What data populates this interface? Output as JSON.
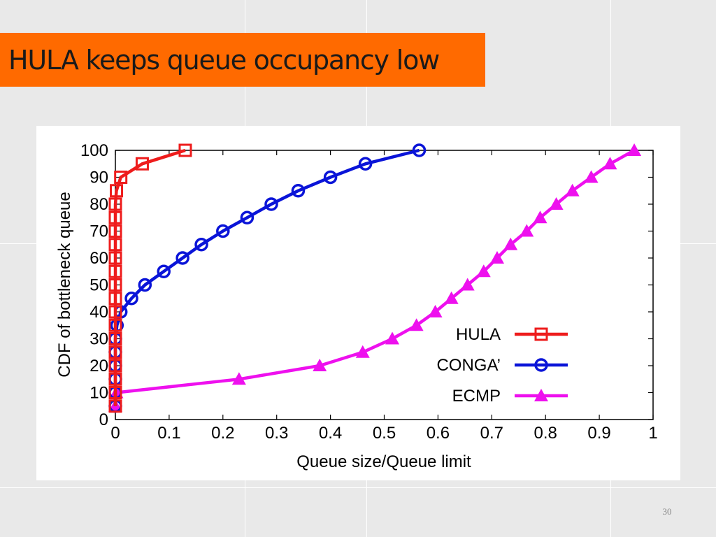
{
  "slide": {
    "title": "HULA keeps queue occupancy low",
    "page_number": "30"
  },
  "colors": {
    "title_background": "#ff6a00",
    "slide_background": "#e9e9e9",
    "HULA": "#ee1c1c",
    "CONGA": "#0a14d8",
    "ECMP": "#ee10ee"
  },
  "chart_data": {
    "type": "line",
    "title": "",
    "xlabel": "Queue size/Queue limit",
    "ylabel": "CDF of bottleneck queue",
    "xlim": [
      0,
      1
    ],
    "ylim": [
      0,
      100
    ],
    "x_ticks": [
      "0",
      "0.1",
      "0.2",
      "0.3",
      "0.4",
      "0.5",
      "0.6",
      "0.7",
      "0.8",
      "0.9",
      "1"
    ],
    "y_ticks": [
      "0",
      "10",
      "20",
      "30",
      "40",
      "50",
      "60",
      "70",
      "80",
      "90",
      "100"
    ],
    "legend_position": "bottom-right",
    "grid": false,
    "series": [
      {
        "name": "HULA",
        "marker": "square",
        "color": "#ee1c1c",
        "points": [
          [
            0,
            5
          ],
          [
            0,
            10
          ],
          [
            0,
            15
          ],
          [
            0,
            20
          ],
          [
            0,
            25
          ],
          [
            0,
            30
          ],
          [
            0,
            35
          ],
          [
            0,
            40
          ],
          [
            0,
            45
          ],
          [
            0,
            50
          ],
          [
            0,
            55
          ],
          [
            0,
            60
          ],
          [
            0,
            65
          ],
          [
            0,
            70
          ],
          [
            0,
            75
          ],
          [
            0,
            80
          ],
          [
            0.002,
            85
          ],
          [
            0.01,
            90
          ],
          [
            0.05,
            95
          ],
          [
            0.13,
            100
          ]
        ]
      },
      {
        "name": "CONGA’",
        "marker": "circle",
        "color": "#0a14d8",
        "points": [
          [
            0,
            5
          ],
          [
            0,
            10
          ],
          [
            0,
            15
          ],
          [
            0,
            20
          ],
          [
            0,
            25
          ],
          [
            0,
            30
          ],
          [
            0.003,
            35
          ],
          [
            0.01,
            40
          ],
          [
            0.03,
            45
          ],
          [
            0.055,
            50
          ],
          [
            0.09,
            55
          ],
          [
            0.125,
            60
          ],
          [
            0.16,
            65
          ],
          [
            0.2,
            70
          ],
          [
            0.245,
            75
          ],
          [
            0.29,
            80
          ],
          [
            0.34,
            85
          ],
          [
            0.4,
            90
          ],
          [
            0.465,
            95
          ],
          [
            0.565,
            100
          ]
        ]
      },
      {
        "name": "ECMP",
        "marker": "triangle",
        "color": "#ee10ee",
        "points": [
          [
            0,
            5
          ],
          [
            0.002,
            10
          ],
          [
            0.23,
            15
          ],
          [
            0.38,
            20
          ],
          [
            0.46,
            25
          ],
          [
            0.515,
            30
          ],
          [
            0.56,
            35
          ],
          [
            0.595,
            40
          ],
          [
            0.625,
            45
          ],
          [
            0.655,
            50
          ],
          [
            0.685,
            55
          ],
          [
            0.71,
            60
          ],
          [
            0.735,
            65
          ],
          [
            0.765,
            70
          ],
          [
            0.79,
            75
          ],
          [
            0.82,
            80
          ],
          [
            0.85,
            85
          ],
          [
            0.885,
            90
          ],
          [
            0.92,
            95
          ],
          [
            0.965,
            100
          ]
        ]
      }
    ]
  }
}
